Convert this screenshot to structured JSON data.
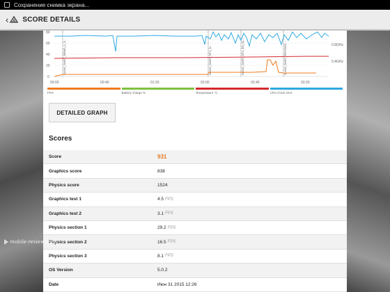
{
  "status_bar": {
    "notification": "Сохранение снимка экрана..."
  },
  "action_bar": {
    "title": "SCORE DETAILS"
  },
  "chart_data": {
    "type": "line",
    "x_ticks": [
      "00:00",
      "00:40",
      "01:20",
      "02:00",
      "02:40",
      "03:20"
    ],
    "y_ticks": [
      "80",
      "60",
      "40",
      "20",
      "0"
    ],
    "right_ticks": [
      "0.8GHz",
      "0.4GHz"
    ],
    "vline_labels": [
      "SLING_SHOT_DEMO_1_S...",
      "SLING_SHOT_GT1_S...",
      "SLING_SHOT_GT2_ES_SL...",
      "SLING_SHOT_PHYSICS..."
    ],
    "legend": [
      {
        "label": "FPS",
        "color": "#f07a1c"
      },
      {
        "label": "Battery charge %",
        "color": "#7ec13e"
      },
      {
        "label": "Temperature °C",
        "color": "#d2282e"
      },
      {
        "label": "CPU Clock GHz",
        "color": "#2ea8e0"
      }
    ]
  },
  "detailed_graph_label": "DETAILED GRAPH",
  "scores_title": "Scores",
  "scores": [
    {
      "name": "Score",
      "value": "931",
      "unit": ""
    },
    {
      "name": "Graphics score",
      "value": "838",
      "unit": ""
    },
    {
      "name": "Physics score",
      "value": "1524",
      "unit": ""
    },
    {
      "name": "Graphics test 1",
      "value": "4.5",
      "unit": "FPS"
    },
    {
      "name": "Graphics test 2",
      "value": "3.1",
      "unit": "FPS"
    },
    {
      "name": "Physics section 1",
      "value": "29.2",
      "unit": "FPS"
    },
    {
      "name": "Physics section 2",
      "value": "16.5",
      "unit": "FPS"
    },
    {
      "name": "Physics section 3",
      "value": "8.1",
      "unit": "FPS"
    },
    {
      "name": "OS Version",
      "value": "5.0.2",
      "unit": ""
    },
    {
      "name": "Date",
      "value": "Июн 31 2015 12:26",
      "unit": ""
    }
  ],
  "watermark": "mobile-review.com"
}
